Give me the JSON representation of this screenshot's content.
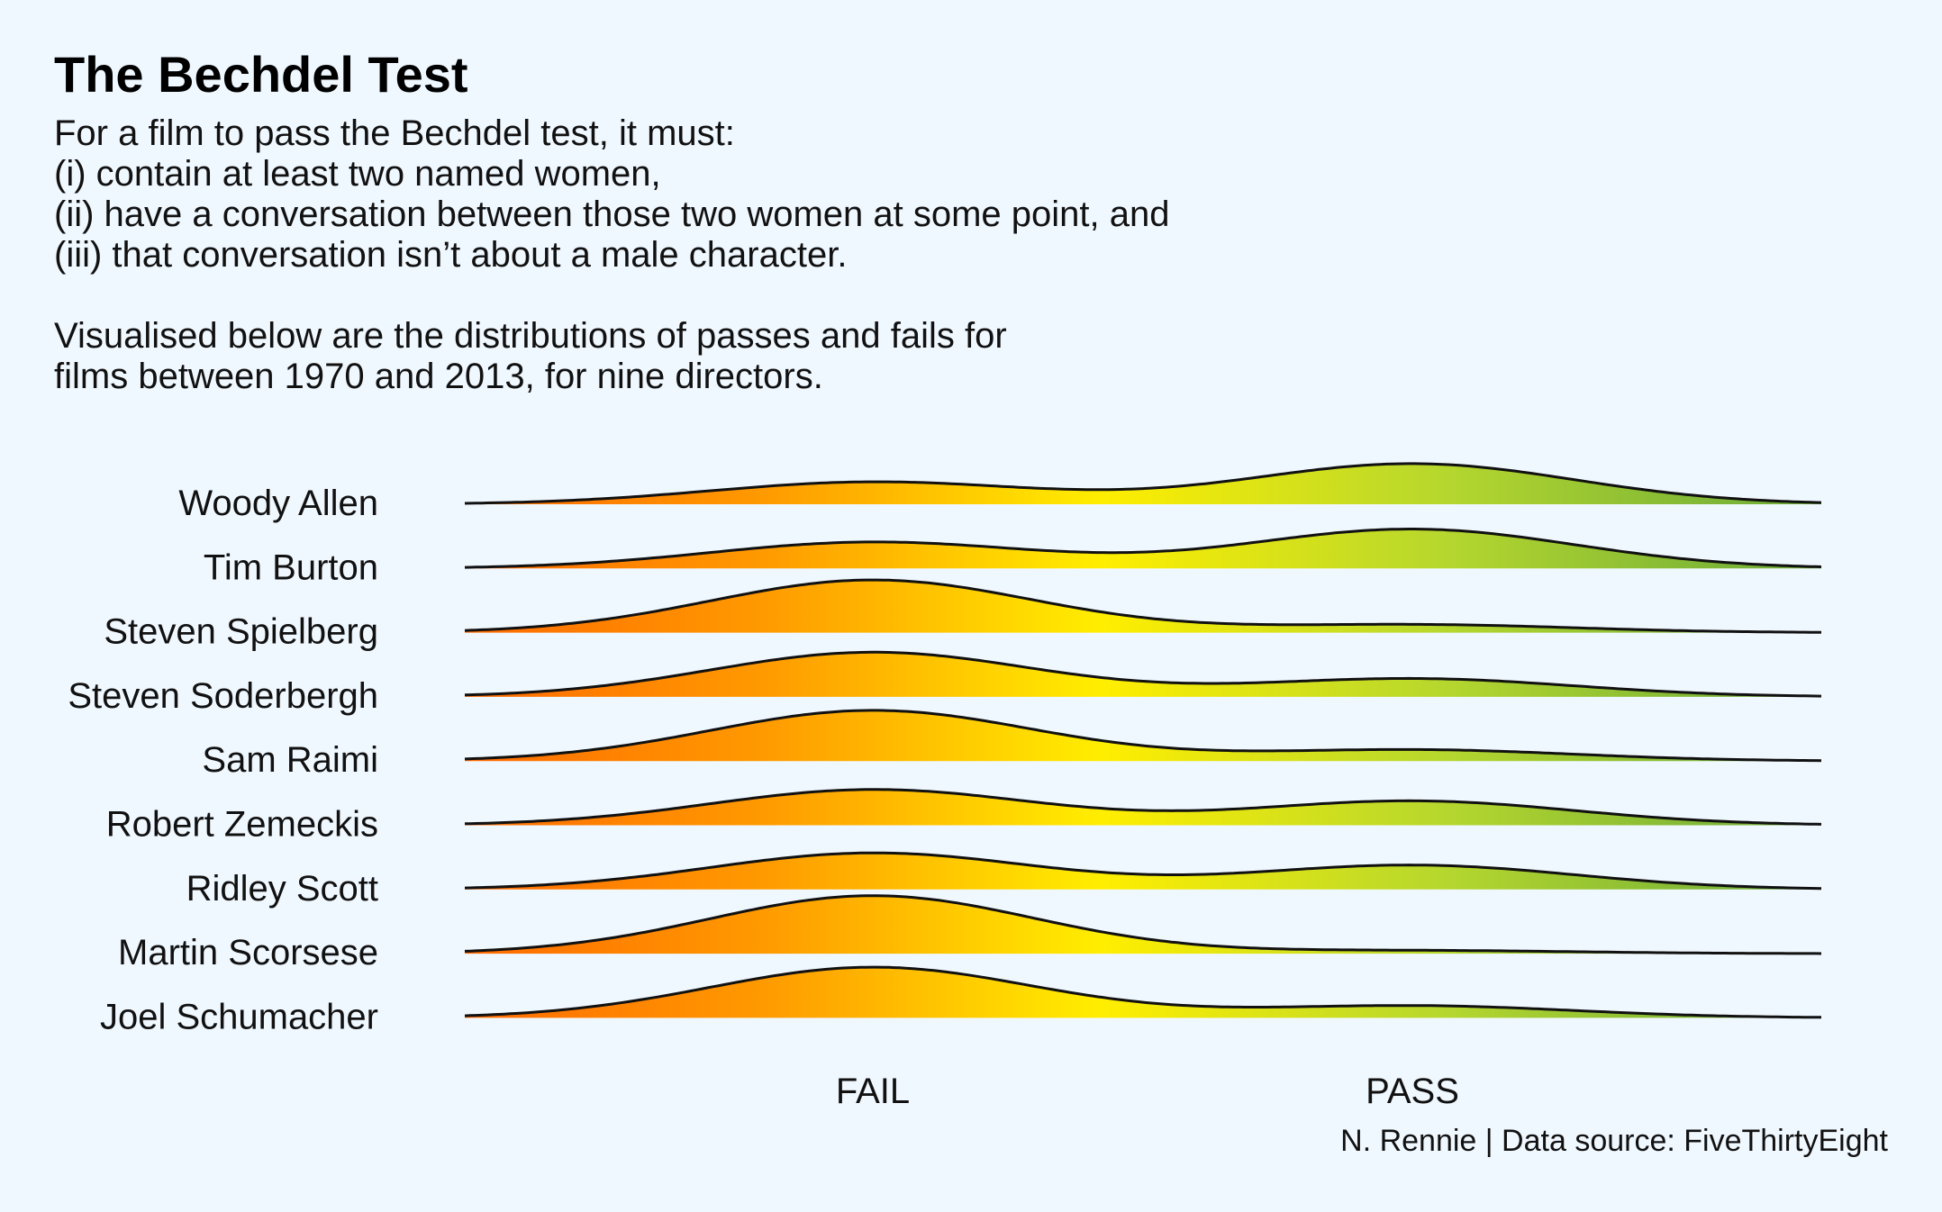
{
  "title": "The Bechdel Test",
  "subtitle_lines": [
    "For a film to pass the Bechdel test, it must:",
    "(i) contain at least two named women,",
    "(ii) have a conversation between those two women at some point, and",
    "(iii) that conversation isn’t about a male character.",
    "",
    "Visualised below are the distributions of passes and fails for",
    "films between 1970 and 2013, for nine directors."
  ],
  "caption": "N. Rennie | Data source: FiveThirtyEight",
  "colors": {
    "background": "#f0f8ff",
    "fail": "#ff6a00",
    "middle": "#ffee00",
    "pass": "#6aaa3a",
    "outline": "#111111"
  },
  "chart_data": {
    "type": "ridgeline",
    "x_categories": [
      "FAIL",
      "PASS"
    ],
    "x_category_positions": [
      0,
      1
    ],
    "x_range": [
      -0.76,
      1.76
    ],
    "xlabel": "",
    "ylabel": "",
    "grid": false,
    "legend": "none",
    "fill": "horizontal gradient: orange (FAIL) to yellow to green (PASS)",
    "series": [
      {
        "name": "Woody Allen",
        "fail_density": 0.55,
        "pass_density": 1.0
      },
      {
        "name": "Tim Burton",
        "fail_density": 0.65,
        "pass_density": 0.97
      },
      {
        "name": "Steven Spielberg",
        "fail_density": 1.3,
        "pass_density": 0.2
      },
      {
        "name": "Steven Soderbergh",
        "fail_density": 1.1,
        "pass_density": 0.45
      },
      {
        "name": "Sam Raimi",
        "fail_density": 1.25,
        "pass_density": 0.28
      },
      {
        "name": "Robert Zemeckis",
        "fail_density": 0.88,
        "pass_density": 0.6
      },
      {
        "name": "Ridley Scott",
        "fail_density": 0.9,
        "pass_density": 0.6
      },
      {
        "name": "Martin Scorsese",
        "fail_density": 1.43,
        "pass_density": 0.08
      },
      {
        "name": "Joel Schumacher",
        "fail_density": 1.25,
        "pass_density": 0.3
      }
    ]
  }
}
